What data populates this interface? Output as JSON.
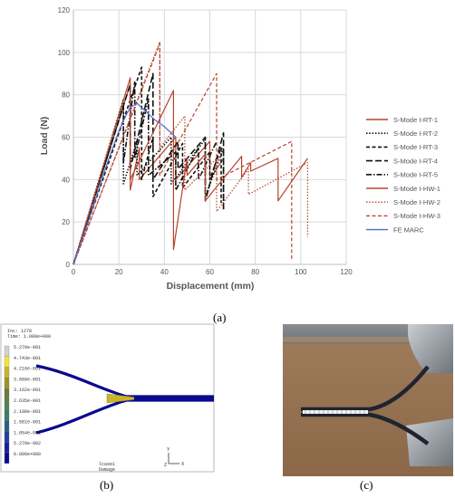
{
  "chart_data": {
    "type": "line",
    "xlabel": "Displacement (mm)",
    "ylabel": "Load (N)",
    "xlim": [
      0,
      120
    ],
    "ylim": [
      0,
      120
    ],
    "xticks": [
      0,
      20,
      40,
      60,
      80,
      100,
      120
    ],
    "yticks": [
      0,
      20,
      40,
      60,
      80,
      100,
      120
    ],
    "grid": true,
    "legend": "right",
    "series": [
      {
        "name": "S-Mode I-RT-1",
        "color": "#b5432c",
        "dash": "solid",
        "x": [
          0,
          25,
          25,
          29,
          29,
          45,
          45,
          60,
          60,
          66
        ],
        "y": [
          0,
          85,
          35,
          55,
          40,
          60,
          40,
          58,
          40,
          50
        ]
      },
      {
        "name": "S-Mode I-RT-2",
        "color": "#111111",
        "dash": "dot",
        "x": [
          0,
          22,
          22,
          28,
          28,
          43,
          43,
          58,
          58,
          66,
          66
        ],
        "y": [
          0,
          78,
          38,
          58,
          42,
          60,
          38,
          59,
          32,
          55,
          26
        ]
      },
      {
        "name": "S-Mode I-RT-3",
        "color": "#111111",
        "dash": "dash",
        "x": [
          0,
          30,
          30,
          35,
          35,
          48,
          48,
          60,
          60,
          65,
          65
        ],
        "y": [
          0,
          93,
          40,
          60,
          32,
          57,
          36,
          53,
          40,
          55,
          29
        ]
      },
      {
        "name": "S-Mode I-RT-4",
        "color": "#111111",
        "dash": "longdash",
        "x": [
          0,
          25,
          25,
          35,
          35,
          46,
          46,
          58,
          58,
          66,
          66
        ],
        "y": [
          0,
          85,
          45,
          90,
          40,
          58,
          45,
          60,
          30,
          62,
          26
        ]
      },
      {
        "name": "S-Mode I-RT-5",
        "color": "#111111",
        "dash": "dashdot",
        "x": [
          0,
          22,
          22,
          27,
          27,
          33,
          33,
          45,
          45,
          55,
          55,
          63
        ],
        "y": [
          0,
          75,
          48,
          86,
          50,
          78,
          42,
          53,
          35,
          55,
          40,
          58
        ]
      },
      {
        "name": "S-Mode I-HW-1",
        "color": "#b5432c",
        "dash": "solid",
        "x": [
          0,
          25,
          25,
          44,
          44,
          50,
          50,
          58,
          58,
          74,
          74,
          78,
          78,
          90,
          90,
          103
        ],
        "y": [
          0,
          88,
          40,
          82,
          7,
          50,
          42,
          52,
          30,
          51,
          41,
          48,
          44,
          50,
          30,
          50
        ]
      },
      {
        "name": "S-Mode I-HW-2",
        "color": "#b5432c",
        "dash": "dot",
        "x": [
          0,
          38,
          38,
          49,
          49,
          63,
          63,
          77,
          77,
          103,
          103
        ],
        "y": [
          0,
          105,
          55,
          70,
          35,
          50,
          25,
          45,
          33,
          48,
          13
        ]
      },
      {
        "name": "S-Mode I-HW-3",
        "color": "#b5432c",
        "dash": "dash",
        "x": [
          0,
          38,
          38,
          63,
          63,
          96,
          96
        ],
        "y": [
          0,
          104,
          42,
          90,
          40,
          58,
          2
        ]
      },
      {
        "name": "FE MARC",
        "color": "#4e6ec8",
        "dash": "solid",
        "x": [
          0,
          8,
          15,
          20,
          23,
          25,
          28,
          32,
          36,
          40,
          45
        ],
        "y": [
          0,
          25,
          48,
          63,
          70,
          74,
          76,
          72,
          68,
          65,
          60
        ]
      }
    ]
  },
  "captions": {
    "a": "(a)",
    "b": "(b)",
    "c": "(c)"
  },
  "fe_panel": {
    "header_inc": "Inc:  1278",
    "header_time": "Time:  1.000e+000",
    "legend_values": [
      "5.270e-001",
      "4.743e-001",
      "4.216e-001",
      "3.689e-001",
      "3.162e-001",
      "2.635e-001",
      "2.108e-001",
      "1.581e-001",
      "1.054e-001",
      "5.270e-002",
      "0.000e+000"
    ],
    "legend_colors": [
      "#d1d1d1",
      "#f3e43c",
      "#c8b528",
      "#9f9225",
      "#6b7a3a",
      "#56804f",
      "#3c7a6c",
      "#2a5f86",
      "#1f3f9c",
      "#16209e",
      "#0a0a8e"
    ],
    "footer_case": "lcase1",
    "footer_label": "Damage",
    "triad_labels": [
      "Y",
      "Z",
      "X"
    ]
  }
}
